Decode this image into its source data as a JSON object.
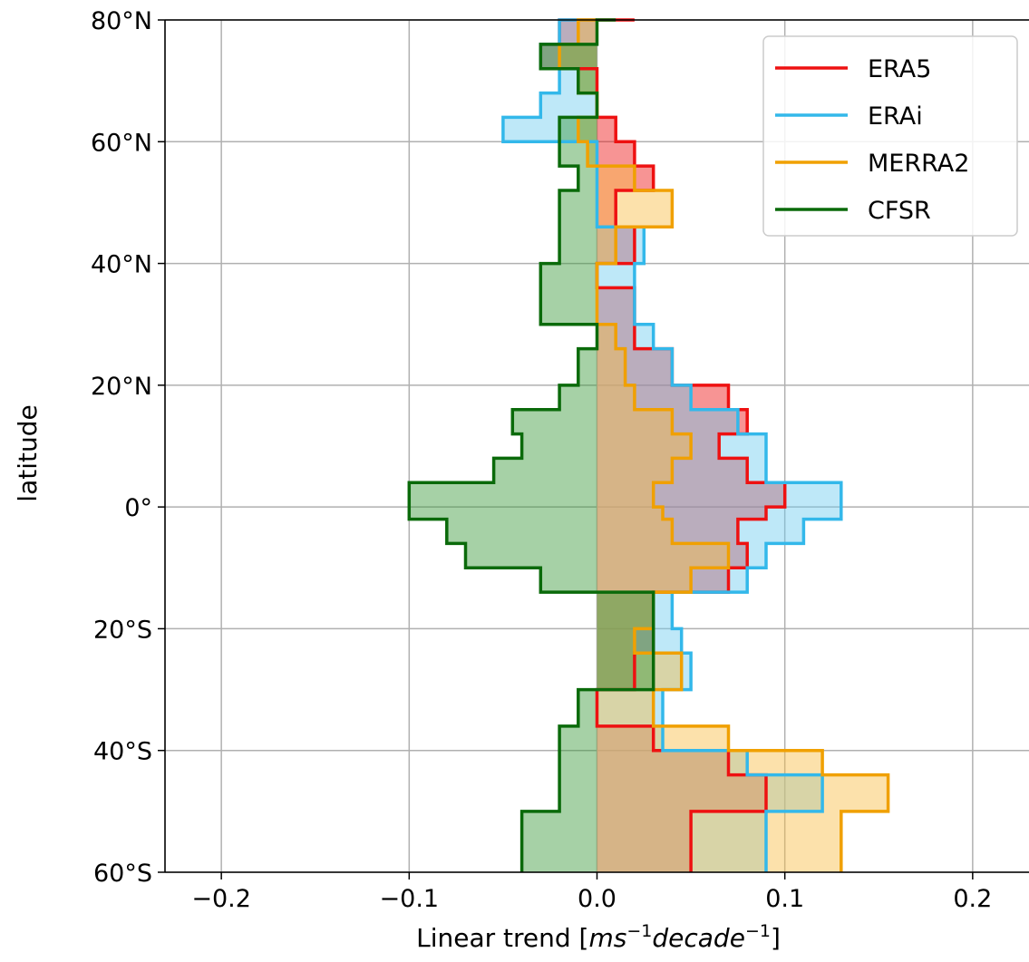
{
  "chart_data": {
    "type": "line",
    "subtype": "latitude step profile (horizontal trend vs latitude) with fill to zero",
    "xlabel_prefix": "Linear trend [",
    "xlabel_suffix": "]",
    "xlabel_units": [
      "ms",
      "−1",
      "decade",
      "−1"
    ],
    "ylabel": "latitude",
    "xlim": [
      -0.23,
      0.23
    ],
    "ylim": [
      -60,
      80
    ],
    "x_ticks": [
      -0.2,
      -0.1,
      0.0,
      0.1,
      0.2
    ],
    "x_tick_labels": [
      "−0.2",
      "−0.1",
      "0.0",
      "0.1",
      "0.2"
    ],
    "y_ticks": [
      80,
      60,
      40,
      20,
      0,
      -20,
      -40,
      -60
    ],
    "y_tick_labels": [
      "80°N",
      "60°N",
      "40°N",
      "20°N",
      "0°",
      "20°S",
      "40°S",
      "60°S"
    ],
    "grid": true,
    "legend_position": "top-right",
    "latitudes": [
      -60,
      -50,
      -44,
      -40,
      -36,
      -30,
      -24,
      -20,
      -14,
      -10,
      -6,
      -2,
      0,
      4,
      8,
      12,
      16,
      20,
      26,
      30,
      36,
      40,
      46,
      52,
      56,
      60,
      64,
      68,
      72,
      76,
      80
    ],
    "series": [
      {
        "name": "ERA5",
        "color": "#ee1111",
        "fill": "#ee1111",
        "values": [
          0.05,
          0.09,
          0.07,
          0.03,
          0.0,
          0.02,
          0.03,
          0.03,
          0.07,
          0.08,
          0.075,
          0.09,
          0.1,
          0.08,
          0.065,
          0.08,
          0.07,
          0.04,
          0.02,
          0.02,
          0.0,
          0.02,
          0.01,
          0.03,
          0.02,
          0.01,
          0.0,
          0.0,
          -0.03,
          -0.02,
          0.02
        ]
      },
      {
        "name": "ERAi",
        "color": "#33b8ea",
        "fill": "#6fcdf0",
        "values": [
          0.09,
          0.12,
          0.08,
          0.035,
          0.035,
          0.05,
          0.045,
          0.04,
          0.08,
          0.09,
          0.11,
          0.13,
          0.13,
          0.09,
          0.09,
          0.075,
          0.05,
          0.04,
          0.03,
          0.02,
          0.02,
          0.025,
          0.0,
          0.0,
          0.0,
          -0.05,
          -0.03,
          -0.02,
          -0.03,
          -0.02,
          0.0
        ]
      },
      {
        "name": "MERRA2",
        "color": "#f0a000",
        "fill": "#f8bd44",
        "values": [
          0.13,
          0.155,
          0.12,
          0.07,
          0.03,
          0.045,
          0.02,
          0.03,
          0.05,
          0.07,
          0.04,
          0.035,
          0.03,
          0.04,
          0.05,
          0.04,
          0.02,
          0.015,
          0.01,
          0.0,
          0.0,
          0.01,
          0.04,
          0.02,
          -0.005,
          -0.01,
          0.0,
          -0.01,
          -0.02,
          -0.01,
          0.0
        ]
      },
      {
        "name": "CFSR",
        "color": "#0a6a0a",
        "fill": "#3a9a3a",
        "values": [
          -0.04,
          -0.02,
          -0.02,
          -0.02,
          -0.01,
          0.03,
          0.03,
          0.03,
          -0.03,
          -0.07,
          -0.08,
          -0.1,
          -0.1,
          -0.055,
          -0.04,
          -0.045,
          -0.02,
          -0.01,
          0.0,
          -0.03,
          -0.03,
          -0.02,
          -0.02,
          -0.01,
          -0.02,
          -0.02,
          0.0,
          -0.01,
          -0.03,
          0.0,
          0.01
        ]
      }
    ]
  }
}
